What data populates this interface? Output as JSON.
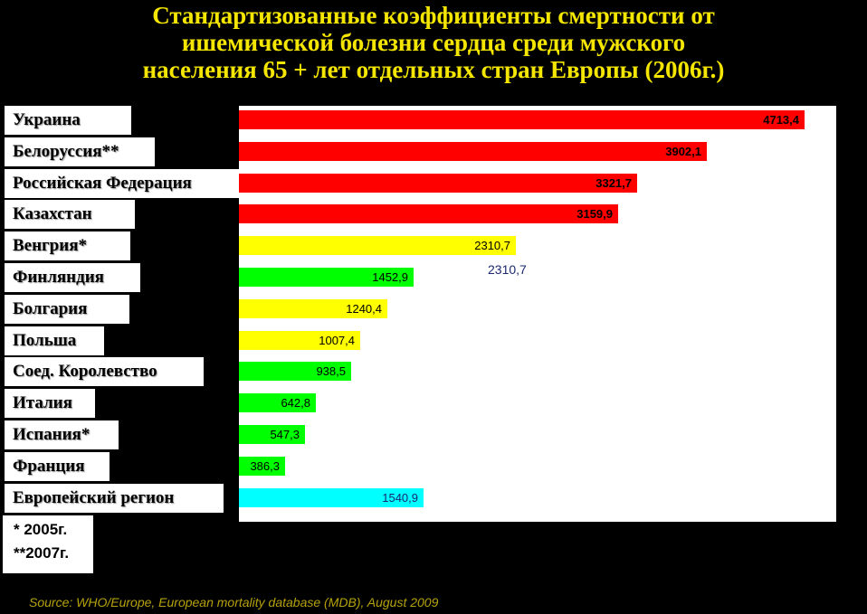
{
  "title": {
    "line1": "Стандартизованные коэффициенты смертности от",
    "line2": "ишемической болезни сердца среди мужского",
    "line3": "населения 65 + лет отдельных стран Европы (2006г.)"
  },
  "chart_data": {
    "type": "bar",
    "orientation": "horizontal",
    "title": "Стандартизованные коэффициенты смертности от ишемической болезни сердца среди мужского населения 65 + лет отдельных стран Европы (2006г.)",
    "categories": [
      "Украина",
      "Белоруссия**",
      "Российская Федерация",
      "Казахстан",
      "Венгрия*",
      "Финляндия",
      "Болгария",
      "Польша",
      "Соед. Королевство",
      "Италия",
      "Испания*",
      "Франция",
      "Европейский регион"
    ],
    "values": [
      4713.4,
      3902.1,
      3321.7,
      3159.9,
      2310.7,
      1452.9,
      1240.4,
      1007.4,
      938.5,
      642.8,
      547.3,
      386.3,
      1540.9
    ],
    "value_labels": [
      "4713,4",
      "3902,1",
      "3321,7",
      "3159,9",
      "2310,7",
      "1452,9",
      "1240,4",
      "1007,4",
      "938,5",
      "642,8",
      "547,3",
      "386,3",
      "1540,9"
    ],
    "bar_colors": [
      "#ff0000",
      "#ff0000",
      "#ff0000",
      "#ff0000",
      "#ffff00",
      "#00ff00",
      "#ffff00",
      "#ffff00",
      "#00ff00",
      "#00ff00",
      "#00ff00",
      "#00ff00",
      "#00ffff"
    ],
    "xlim": [
      0,
      5000
    ],
    "xlabel": "",
    "ylabel": "",
    "grid": false,
    "legend": "none"
  },
  "stray_label": "2310,7",
  "notes": [
    "* 2005г.",
    "**2007г."
  ],
  "source": "Source: WHO/Europe, European mortality database (MDB), August  2009"
}
